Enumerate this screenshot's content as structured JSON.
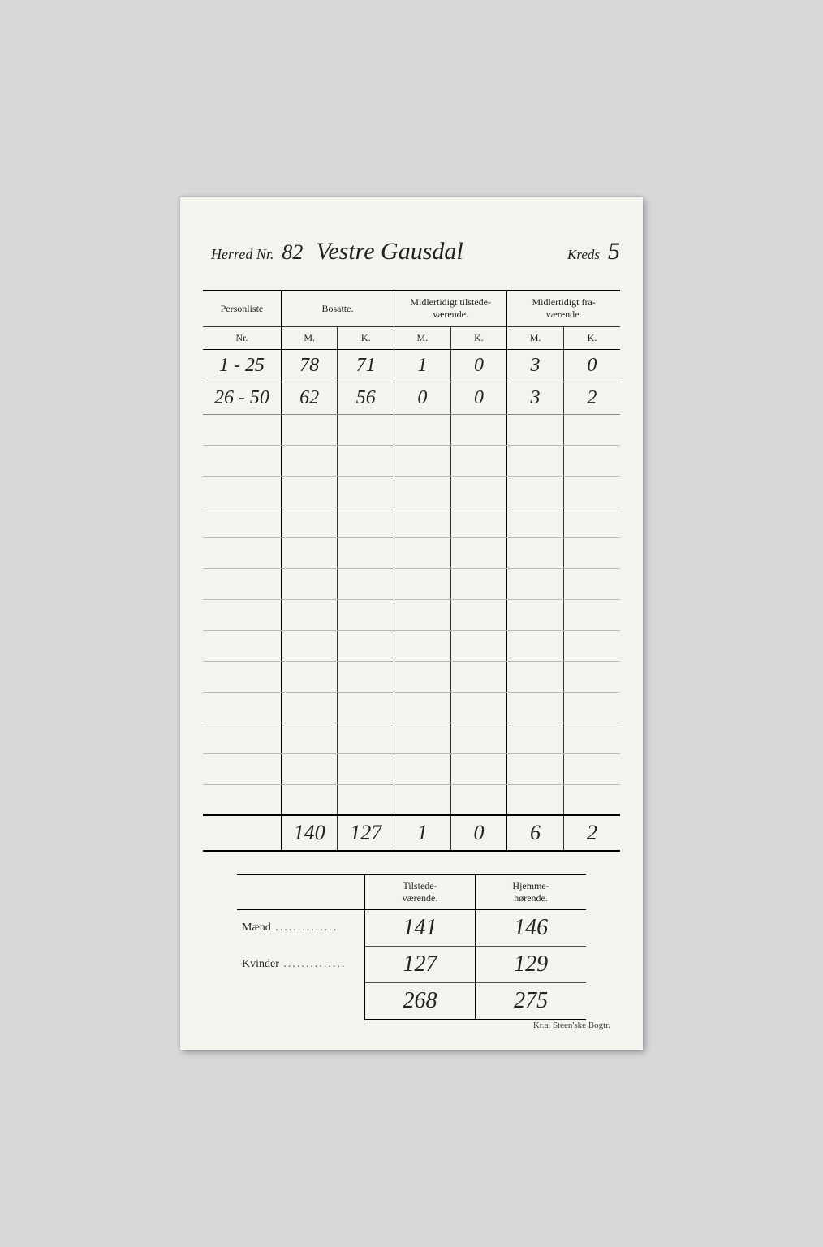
{
  "header": {
    "herred_label": "Herred Nr.",
    "herred_nr": "82",
    "herred_name": "Vestre Gausdal",
    "kreds_label": "Kreds",
    "kreds_nr": "5"
  },
  "main_table": {
    "columns": {
      "personliste": "Personliste",
      "personliste_sub": "Nr.",
      "bosatte": "Bosatte.",
      "midl_til": "Midlertidigt tilstede-\nværende.",
      "midl_fra": "Midlertidigt fra-\nværende.",
      "m": "M.",
      "k": "K."
    },
    "rows": [
      {
        "nr": "1 - 25",
        "bos_m": "78",
        "bos_k": "71",
        "til_m": "1",
        "til_k": "0",
        "fra_m": "3",
        "fra_k": "0"
      },
      {
        "nr": "26 - 50",
        "bos_m": "62",
        "bos_k": "56",
        "til_m": "0",
        "til_k": "0",
        "fra_m": "3",
        "fra_k": "2"
      }
    ],
    "empty_rows": 13,
    "totals": {
      "nr": "",
      "bos_m": "140",
      "bos_k": "127",
      "til_m": "1",
      "til_k": "0",
      "fra_m": "6",
      "fra_k": "2"
    }
  },
  "summary": {
    "col_tilstede": "Tilstede-\nværende.",
    "col_hjemme": "Hjemme-\nhørende.",
    "rows": [
      {
        "label": "Mænd",
        "tilstede": "141",
        "hjemme": "146"
      },
      {
        "label": "Kvinder",
        "tilstede": "127",
        "hjemme": "129"
      }
    ],
    "totals": {
      "label": "",
      "tilstede": "268",
      "hjemme": "275"
    }
  },
  "footer": "Kr.a.  Steen'ske Bogtr."
}
